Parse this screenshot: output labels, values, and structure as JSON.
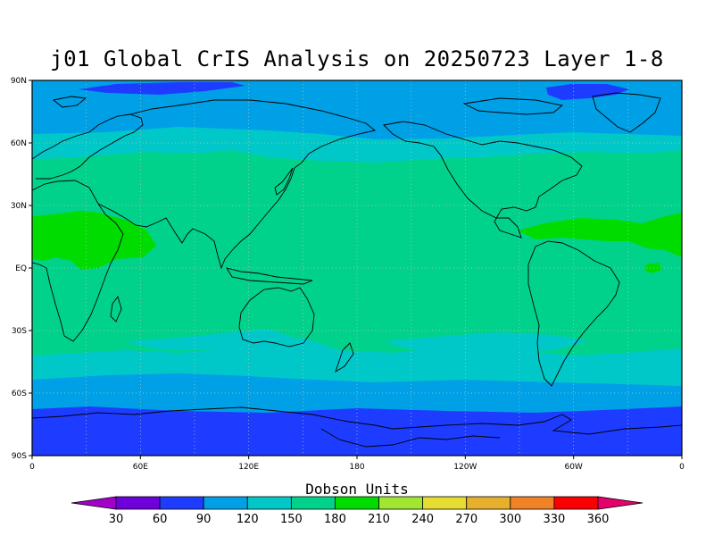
{
  "title": "j01 Global CrIS Analysis on 20250723 Layer 1-8",
  "lat_labels": [
    "90N",
    "60N",
    "30N",
    "EQ",
    "30S",
    "60S",
    "90S"
  ],
  "lon_labels": [
    "0",
    "60E",
    "120E",
    "180",
    "120W",
    "60W",
    "0"
  ],
  "colorbar": {
    "title": "Dobson Units",
    "ticks": [
      "30",
      "60",
      "90",
      "120",
      "150",
      "180",
      "210",
      "240",
      "270",
      "300",
      "330",
      "360"
    ],
    "colors": [
      "#a000c8",
      "#6e00dc",
      "#1e3cff",
      "#00a0e6",
      "#00c8c8",
      "#00d28c",
      "#00dc00",
      "#a0e632",
      "#e6dc32",
      "#e6af2d",
      "#f08228",
      "#fa0000",
      "#e6006e"
    ]
  },
  "palette": {
    "frame": "#000000",
    "grid": "#b8c8b8",
    "coast": "#000000"
  }
}
